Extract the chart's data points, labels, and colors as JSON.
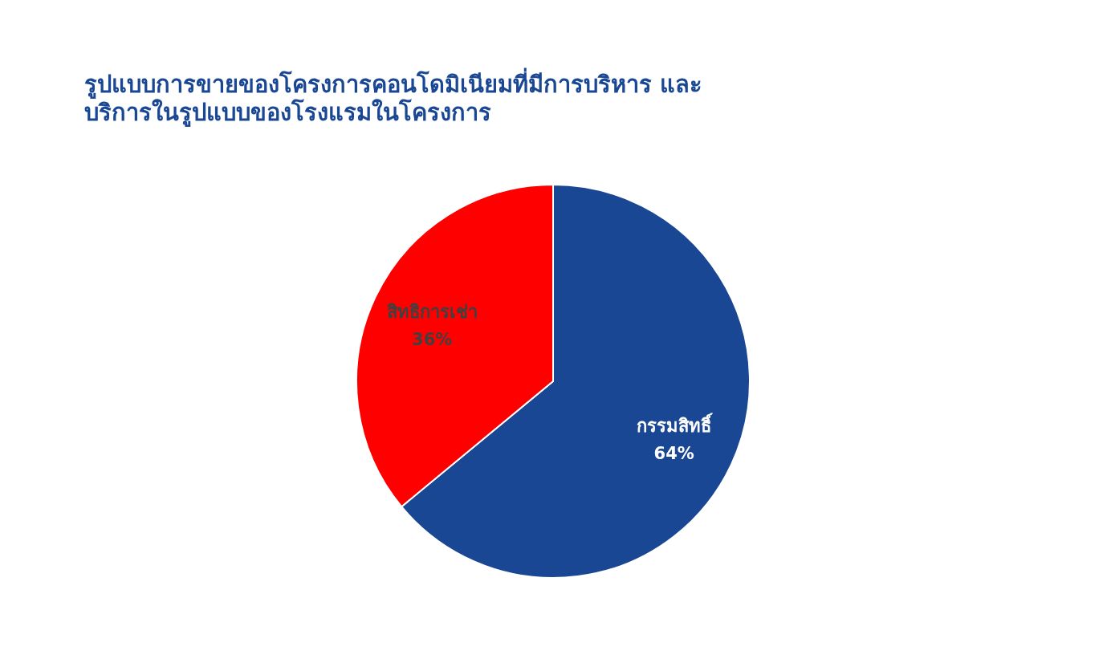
{
  "chart_data": {
    "type": "pie",
    "title": "รูปแบบการขายของโครงการคอนโดมิเนียมที่มีการบริหาร และบริการในรูปแบบของโรงแรมในโครงการ",
    "categories": [
      "กรรมสิทธิ์",
      "สิทธิการเช่า"
    ],
    "values": [
      64,
      36
    ],
    "colors": [
      "#1a4794",
      "#ff0000"
    ],
    "value_labels": [
      "64%",
      "36%"
    ],
    "legend": false
  }
}
